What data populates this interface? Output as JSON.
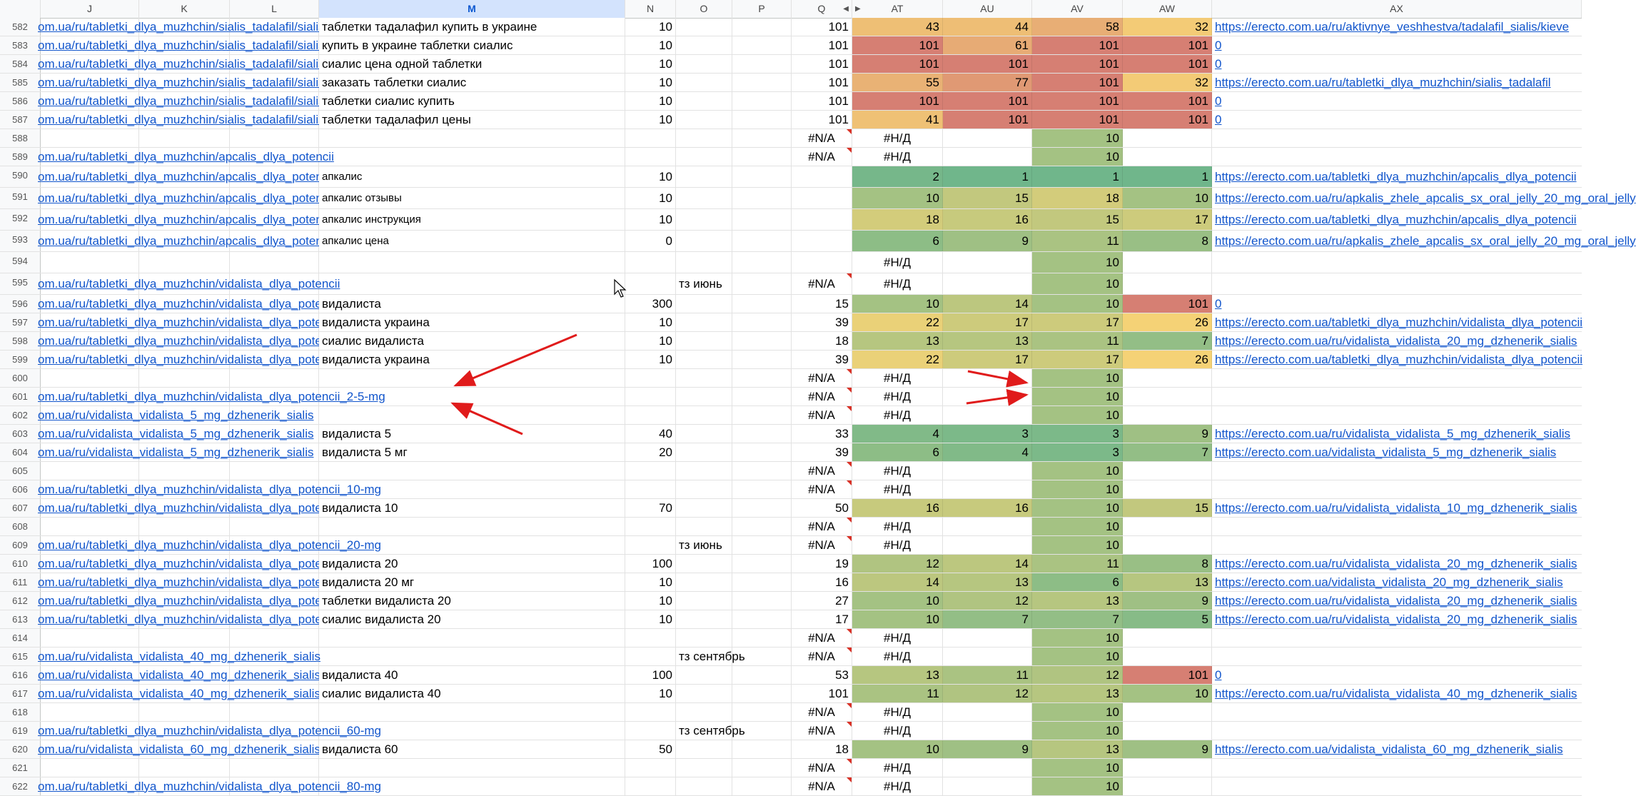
{
  "columns": [
    "J",
    "K",
    "L",
    "M",
    "N",
    "O",
    "P",
    "Q",
    "AT",
    "AU",
    "AV",
    "AW",
    "AX"
  ],
  "selected_column": "M",
  "heat_colors": {
    "low": "#70b68b",
    "mid": "#f6d476",
    "high": "#d67f73"
  },
  "rows": [
    {
      "num": "582",
      "j": "om.ua/ru/tabletki_dlya_muzhchin/sialis_tadalafil/sialis",
      "m": "таблетки тадалафил купить в украине",
      "n": "10",
      "o": "",
      "q": "101",
      "at": "43",
      "au": "44",
      "av": "58",
      "aw": "32",
      "ax": "https://erecto.com.ua/ru/aktivnye_veshhestva/tadalafil_sialis/kieve"
    },
    {
      "num": "583",
      "j": "om.ua/ru/tabletki_dlya_muzhchin/sialis_tadalafil/sialis",
      "m": "купить в украине таблетки сиалис",
      "n": "10",
      "o": "",
      "q": "101",
      "at": "101",
      "au": "61",
      "av": "101",
      "aw": "101",
      "ax": "0"
    },
    {
      "num": "584",
      "j": "om.ua/ru/tabletki_dlya_muzhchin/sialis_tadalafil/sialis",
      "m": "сиалис цена одной таблетки",
      "n": "10",
      "o": "",
      "q": "101",
      "at": "101",
      "au": "101",
      "av": "101",
      "aw": "101",
      "ax": "0"
    },
    {
      "num": "585",
      "j": "om.ua/ru/tabletki_dlya_muzhchin/sialis_tadalafil/sialis",
      "m": "заказать таблетки сиалис",
      "n": "10",
      "o": "",
      "q": "101",
      "at": "55",
      "au": "77",
      "av": "101",
      "aw": "32",
      "ax": "https://erecto.com.ua/ru/tabletki_dlya_muzhchin/sialis_tadalafil"
    },
    {
      "num": "586",
      "j": "om.ua/ru/tabletki_dlya_muzhchin/sialis_tadalafil/sialis",
      "m": "таблетки сиалис купить",
      "n": "10",
      "o": "",
      "q": "101",
      "at": "101",
      "au": "101",
      "av": "101",
      "aw": "101",
      "ax": "0"
    },
    {
      "num": "587",
      "j": "om.ua/ru/tabletki_dlya_muzhchin/sialis_tadalafil/sialis",
      "m": "таблетки тадалафил цены",
      "n": "10",
      "o": "",
      "q": "101",
      "at": "41",
      "au": "101",
      "av": "101",
      "aw": "101",
      "ax": "0"
    },
    {
      "num": "588",
      "j": "",
      "m": "",
      "n": "",
      "o": "",
      "q": "#N/A",
      "at": "#Н/Д",
      "au": "",
      "av": "10",
      "aw": "",
      "ax": ""
    },
    {
      "num": "589",
      "j": "om.ua/ru/tabletki_dlya_muzhchin/apcalis_dlya_potencii",
      "m": "",
      "n": "",
      "o": "",
      "q": "#N/A",
      "at": "#Н/Д",
      "au": "",
      "av": "10",
      "aw": "",
      "ax": ""
    },
    {
      "num": "590",
      "tall": true,
      "j": "om.ua/ru/tabletki_dlya_muzhchin/apcalis_dlya_poten",
      "m": "апкалис",
      "n": "10",
      "o": "",
      "q": "",
      "at": "2",
      "au": "1",
      "av": "1",
      "aw": "1",
      "ax": "https://erecto.com.ua/tabletki_dlya_muzhchin/apcalis_dlya_potencii"
    },
    {
      "num": "591",
      "tall": true,
      "j": "om.ua/ru/tabletki_dlya_muzhchin/apcalis_dlya_poten",
      "m": "апкалис отзывы",
      "n": "10",
      "o": "",
      "q": "",
      "at": "10",
      "au": "15",
      "av": "18",
      "aw": "10",
      "ax": "https://erecto.com.ua/ru/apkalis_zhele_apcalis_sx_oral_jelly_20_mg_oral_jelly"
    },
    {
      "num": "592",
      "tall": true,
      "j": "om.ua/ru/tabletki_dlya_muzhchin/apcalis_dlya_poten",
      "m": "апкалис инструкция",
      "n": "10",
      "o": "",
      "q": "",
      "at": "18",
      "au": "16",
      "av": "15",
      "aw": "17",
      "ax": "https://erecto.com.ua/tabletki_dlya_muzhchin/apcalis_dlya_potencii"
    },
    {
      "num": "593",
      "tall": true,
      "j": "om.ua/ru/tabletki_dlya_muzhchin/apcalis_dlya_poten",
      "m": "апкалис цена",
      "n": "0",
      "o": "",
      "q": "",
      "at": "6",
      "au": "9",
      "av": "11",
      "aw": "8",
      "ax": "https://erecto.com.ua/ru/apkalis_zhele_apcalis_sx_oral_jelly_20_mg_oral_jelly"
    },
    {
      "num": "594",
      "tall": true,
      "j": "",
      "m": "",
      "n": "",
      "o": "",
      "q": "",
      "at": "#Н/Д",
      "au": "",
      "av": "10",
      "aw": "",
      "ax": ""
    },
    {
      "num": "595",
      "tall": true,
      "j": "om.ua/ru/tabletki_dlya_muzhchin/vidalista_dlya_potencii",
      "m": "",
      "n": "",
      "o": "тз июнь",
      "q": "#N/A",
      "at": "#Н/Д",
      "au": "",
      "av": "10",
      "aw": "",
      "ax": ""
    },
    {
      "num": "596",
      "j": "om.ua/ru/tabletki_dlya_muzhchin/vidalista_dlya_pote",
      "m": "видалиста",
      "n": "300",
      "o": "",
      "q": "15",
      "at": "10",
      "au": "14",
      "av": "10",
      "aw": "101",
      "ax": "0"
    },
    {
      "num": "597",
      "j": "om.ua/ru/tabletki_dlya_muzhchin/vidalista_dlya_pote",
      "m": "видалиста украина",
      "n": "10",
      "o": "",
      "q": "39",
      "at": "22",
      "au": "17",
      "av": "17",
      "aw": "26",
      "ax": "https://erecto.com.ua/tabletki_dlya_muzhchin/vidalista_dlya_potencii"
    },
    {
      "num": "598",
      "j": "om.ua/ru/tabletki_dlya_muzhchin/vidalista_dlya_pote",
      "m": "сиалис видалиста",
      "n": "10",
      "o": "",
      "q": "18",
      "at": "13",
      "au": "13",
      "av": "11",
      "aw": "7",
      "ax": "https://erecto.com.ua/ru/vidalista_vidalista_20_mg_dzhenerik_sialis"
    },
    {
      "num": "599",
      "j": "om.ua/ru/tabletki_dlya_muzhchin/vidalista_dlya_pote",
      "m": "видалиста украина",
      "n": "10",
      "o": "",
      "q": "39",
      "at": "22",
      "au": "17",
      "av": "17",
      "aw": "26",
      "ax": "https://erecto.com.ua/tabletki_dlya_muzhchin/vidalista_dlya_potencii"
    },
    {
      "num": "600",
      "j": "",
      "m": "",
      "n": "",
      "o": "",
      "q": "#N/A",
      "at": "#Н/Д",
      "au": "",
      "av": "10",
      "aw": "",
      "ax": ""
    },
    {
      "num": "601",
      "j": "om.ua/ru/tabletki_dlya_muzhchin/vidalista_dlya_potencii_2-5-mg",
      "m": "",
      "n": "",
      "o": "",
      "q": "#N/A",
      "at": "#Н/Д",
      "au": "",
      "av": "10",
      "aw": "",
      "ax": ""
    },
    {
      "num": "602",
      "j": "om.ua/ru/vidalista_vidalista_5_mg_dzhenerik_sialis",
      "m": "",
      "n": "",
      "o": "",
      "q": "#N/A",
      "at": "#Н/Д",
      "au": "",
      "av": "10",
      "aw": "",
      "ax": ""
    },
    {
      "num": "603",
      "j": "om.ua/ru/vidalista_vidalista_5_mg_dzhenerik_sialis",
      "m": "видалиста 5",
      "n": "40",
      "o": "",
      "q": "33",
      "at": "4",
      "au": "3",
      "av": "3",
      "aw": "9",
      "ax": "https://erecto.com.ua/ru/vidalista_vidalista_5_mg_dzhenerik_sialis"
    },
    {
      "num": "604",
      "j": "om.ua/ru/vidalista_vidalista_5_mg_dzhenerik_sialis",
      "m": "видалиста 5 мг",
      "n": "20",
      "o": "",
      "q": "39",
      "at": "6",
      "au": "4",
      "av": "3",
      "aw": "7",
      "ax": "https://erecto.com.ua/vidalista_vidalista_5_mg_dzhenerik_sialis"
    },
    {
      "num": "605",
      "j": "",
      "m": "",
      "n": "",
      "o": "",
      "q": "#N/A",
      "at": "#Н/Д",
      "au": "",
      "av": "10",
      "aw": "",
      "ax": ""
    },
    {
      "num": "606",
      "j": "om.ua/ru/tabletki_dlya_muzhchin/vidalista_dlya_potencii_10-mg",
      "m": "",
      "n": "",
      "o": "",
      "q": "#N/A",
      "at": "#Н/Д",
      "au": "",
      "av": "10",
      "aw": "",
      "ax": ""
    },
    {
      "num": "607",
      "j": "om.ua/ru/tabletki_dlya_muzhchin/vidalista_dlya_pote",
      "m": "видалиста 10",
      "n": "70",
      "o": "",
      "q": "50",
      "at": "16",
      "au": "16",
      "av": "10",
      "aw": "15",
      "ax": "https://erecto.com.ua/ru/vidalista_vidalista_10_mg_dzhenerik_sialis"
    },
    {
      "num": "608",
      "j": "",
      "m": "",
      "n": "",
      "o": "",
      "q": "#N/A",
      "at": "#Н/Д",
      "au": "",
      "av": "10",
      "aw": "",
      "ax": ""
    },
    {
      "num": "609",
      "j": "om.ua/ru/tabletki_dlya_muzhchin/vidalista_dlya_potencii_20-mg",
      "m": "",
      "n": "",
      "o": "тз июнь",
      "q": "#N/A",
      "at": "#Н/Д",
      "au": "",
      "av": "10",
      "aw": "",
      "ax": ""
    },
    {
      "num": "610",
      "j": "om.ua/ru/tabletki_dlya_muzhchin/vidalista_dlya_pote",
      "m": "видалиста 20",
      "n": "100",
      "o": "",
      "q": "19",
      "at": "12",
      "au": "14",
      "av": "11",
      "aw": "8",
      "ax": "https://erecto.com.ua/ru/vidalista_vidalista_20_mg_dzhenerik_sialis"
    },
    {
      "num": "611",
      "j": "om.ua/ru/tabletki_dlya_muzhchin/vidalista_dlya_pote",
      "m": "видалиста 20 мг",
      "n": "10",
      "o": "",
      "q": "16",
      "at": "14",
      "au": "13",
      "av": "6",
      "aw": "13",
      "ax": "https://erecto.com.ua/vidalista_vidalista_20_mg_dzhenerik_sialis"
    },
    {
      "num": "612",
      "j": "om.ua/ru/tabletki_dlya_muzhchin/vidalista_dlya_pote",
      "m": "таблетки видалиста 20",
      "n": "10",
      "o": "",
      "q": "27",
      "at": "10",
      "au": "12",
      "av": "13",
      "aw": "9",
      "ax": "https://erecto.com.ua/ru/vidalista_vidalista_20_mg_dzhenerik_sialis"
    },
    {
      "num": "613",
      "j": "om.ua/ru/tabletki_dlya_muzhchin/vidalista_dlya_pote",
      "m": "сиалис видалиста 20",
      "n": "10",
      "o": "",
      "q": "17",
      "at": "10",
      "au": "7",
      "av": "7",
      "aw": "5",
      "ax": "https://erecto.com.ua/ru/vidalista_vidalista_20_mg_dzhenerik_sialis"
    },
    {
      "num": "614",
      "j": "",
      "m": "",
      "n": "",
      "o": "",
      "q": "#N/A",
      "at": "#Н/Д",
      "au": "",
      "av": "10",
      "aw": "",
      "ax": ""
    },
    {
      "num": "615",
      "j": "om.ua/ru/vidalista_vidalista_40_mg_dzhenerik_sialis",
      "m": "",
      "n": "",
      "o": "тз сентябрь",
      "q": "#N/A",
      "at": "#Н/Д",
      "au": "",
      "av": "10",
      "aw": "",
      "ax": ""
    },
    {
      "num": "616",
      "j": "om.ua/ru/vidalista_vidalista_40_mg_dzhenerik_sialis",
      "m": "видалиста 40",
      "n": "100",
      "o": "",
      "q": "53",
      "at": "13",
      "au": "11",
      "av": "12",
      "aw": "101",
      "ax": "0"
    },
    {
      "num": "617",
      "j": "om.ua/ru/vidalista_vidalista_40_mg_dzhenerik_sialis",
      "m": "сиалис видалиста 40",
      "n": "10",
      "o": "",
      "q": "101",
      "at": "11",
      "au": "12",
      "av": "13",
      "aw": "10",
      "ax": "https://erecto.com.ua/ru/vidalista_vidalista_40_mg_dzhenerik_sialis"
    },
    {
      "num": "618",
      "j": "",
      "m": "",
      "n": "",
      "o": "",
      "q": "#N/A",
      "at": "#Н/Д",
      "au": "",
      "av": "10",
      "aw": "",
      "ax": ""
    },
    {
      "num": "619",
      "j": "om.ua/ru/tabletki_dlya_muzhchin/vidalista_dlya_potencii_60-mg",
      "m": "",
      "n": "",
      "o": "тз сентябрь",
      "q": "#N/A",
      "at": "#Н/Д",
      "au": "",
      "av": "10",
      "aw": "",
      "ax": ""
    },
    {
      "num": "620",
      "j": "om.ua/ru/vidalista_vidalista_60_mg_dzhenerik_sialis",
      "m": "видалиста 60",
      "n": "50",
      "o": "",
      "q": "18",
      "at": "10",
      "au": "9",
      "av": "13",
      "aw": "9",
      "ax": "https://erecto.com.ua/vidalista_vidalista_60_mg_dzhenerik_sialis"
    },
    {
      "num": "621",
      "j": "",
      "m": "",
      "n": "",
      "o": "",
      "q": "#N/A",
      "at": "#Н/Д",
      "au": "",
      "av": "10",
      "aw": "",
      "ax": ""
    },
    {
      "num": "622",
      "j": "om.ua/ru/tabletki_dlya_muzhchin/vidalista_dlya_potencii_80-mg",
      "m": "",
      "n": "",
      "o": "",
      "q": "#N/A",
      "at": "#Н/Д",
      "au": "",
      "av": "10",
      "aw": "",
      "ax": ""
    }
  ]
}
